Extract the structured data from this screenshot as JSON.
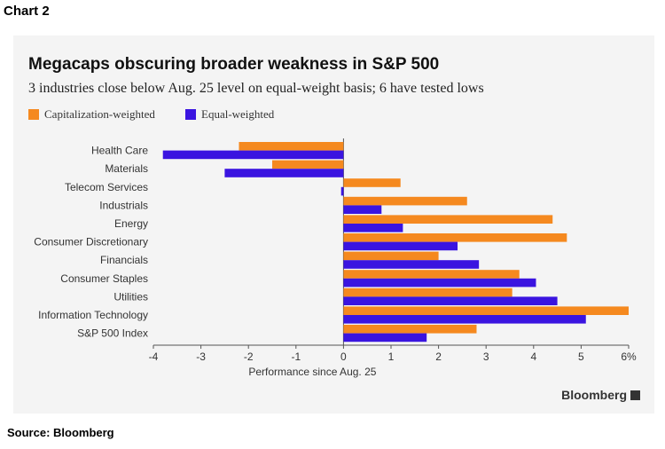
{
  "page": {
    "label": "Chart 2",
    "source": "Source: Bloomberg",
    "brand": "Bloomberg"
  },
  "colors": {
    "cap_weighted": "#f5891f",
    "equal_weighted": "#3a14e0",
    "panel_bg": "#f4f4f4"
  },
  "chart_data": {
    "type": "bar",
    "orientation": "horizontal",
    "title": "Megacaps obscuring broader weakness in S&P 500",
    "subtitle": "3 industries close below Aug. 25 level on equal-weight basis; 6 have tested lows",
    "xlabel": "Performance since Aug. 25",
    "ylabel": "",
    "xlim": [
      -4,
      6
    ],
    "x_ticks": [
      -4,
      -3,
      -2,
      -1,
      0,
      1,
      2,
      3,
      4,
      5,
      6
    ],
    "x_tick_labels": [
      "-4",
      "-3",
      "-2",
      "-1",
      "0",
      "1",
      "2",
      "3",
      "4",
      "5",
      "6%"
    ],
    "grid": false,
    "legend_position": "top-left",
    "categories": [
      "Health Care",
      "Materials",
      "Telecom Services",
      "Industrials",
      "Energy",
      "Consumer Discretionary",
      "Financials",
      "Consumer Staples",
      "Utilities",
      "Information Technology",
      "S&P 500 Index"
    ],
    "series": [
      {
        "name": "Capitalization-weighted",
        "color": "#f5891f",
        "values": [
          -2.2,
          -1.5,
          1.2,
          2.6,
          4.4,
          4.7,
          2.0,
          3.7,
          3.55,
          6.0,
          2.8
        ]
      },
      {
        "name": "Equal-weighted",
        "color": "#3a14e0",
        "values": [
          -3.8,
          -2.5,
          -0.05,
          0.8,
          1.25,
          2.4,
          2.85,
          4.05,
          4.5,
          5.1,
          1.75
        ]
      }
    ]
  }
}
